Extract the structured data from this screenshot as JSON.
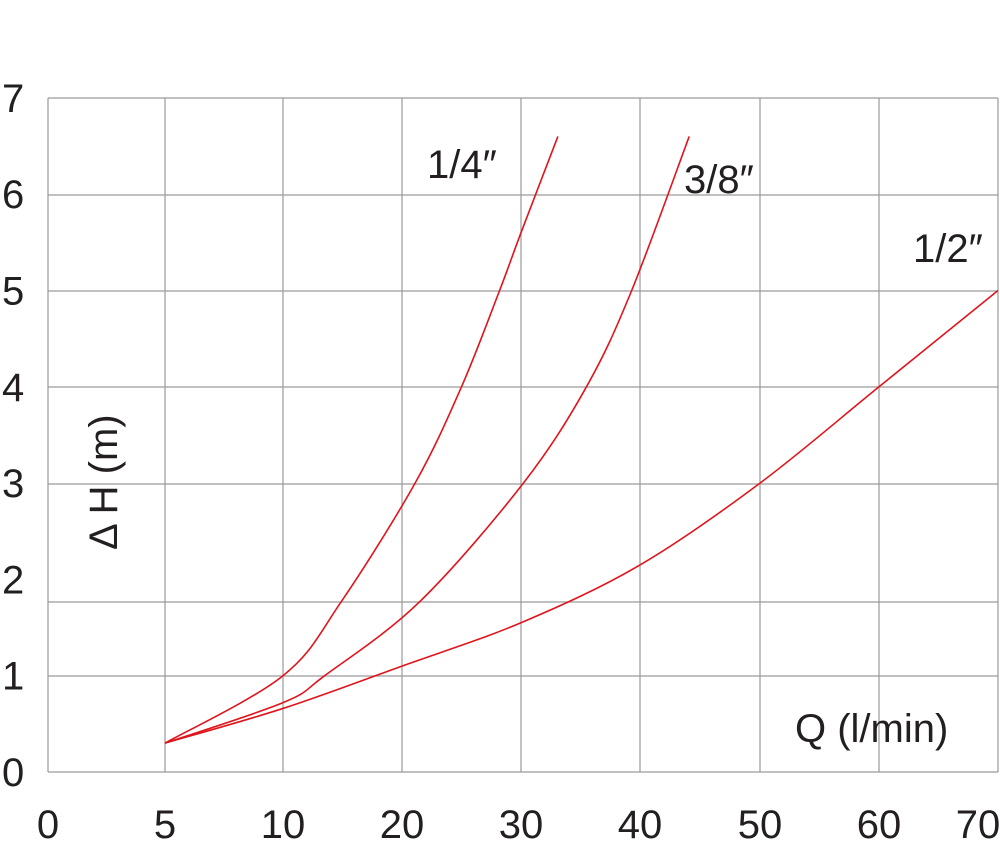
{
  "chart_data": {
    "type": "line",
    "title": "",
    "xlabel": "Q (l/min)",
    "ylabel": "Δ H (m)",
    "x_ticks": [
      0,
      5,
      10,
      20,
      30,
      40,
      50,
      60,
      70
    ],
    "y_ticks": [
      0,
      1,
      2,
      3,
      4,
      5,
      6,
      7
    ],
    "xlim": [
      0,
      70
    ],
    "ylim": [
      0,
      7
    ],
    "grid": true,
    "line_color": "#e0141b",
    "series": [
      {
        "name": "1/4″",
        "x": [
          5,
          10,
          14.9,
          21.1,
          25,
          28.2,
          30,
          33.1
        ],
        "y": [
          0.3,
          1.0,
          1.77,
          3.0,
          4.0,
          5.0,
          5.6,
          6.6
        ]
      },
      {
        "name": "3/8″",
        "x": [
          5,
          10,
          13.5,
          21.5,
          30.2,
          35.5,
          39.3,
          44.1
        ],
        "y": [
          0.3,
          0.72,
          1.0,
          1.77,
          3.0,
          4.0,
          5.0,
          6.6
        ]
      },
      {
        "name": "1/2″",
        "x": [
          5,
          10,
          20,
          30,
          40,
          50,
          60,
          70
        ],
        "y": [
          0.3,
          0.66,
          1.1,
          1.55,
          2.15,
          3.0,
          4.0,
          5.0
        ]
      }
    ]
  }
}
